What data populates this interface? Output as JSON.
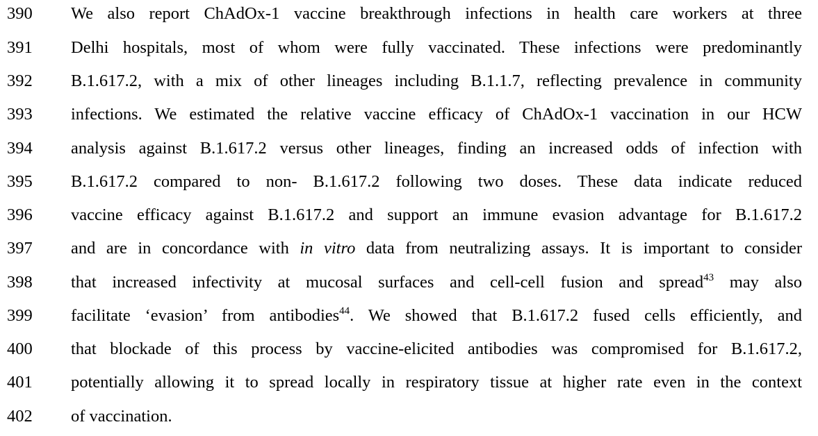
{
  "lines": [
    {
      "number": "390",
      "text": "We also report ChAdOx-1 vaccine breakthrough infections in health care workers at three"
    },
    {
      "number": "391",
      "text": "Delhi hospitals, most of whom were fully vaccinated. These infections were predominantly"
    },
    {
      "number": "392",
      "text": "B.1.617.2, with a mix of other lineages including B.1.1.7, reflecting prevalence in community"
    },
    {
      "number": "393",
      "text": "infections. We estimated the relative vaccine efficacy of ChAdOx-1 vaccination in our HCW"
    },
    {
      "number": "394",
      "text": "analysis against B.1.617.2 versus other lineages, finding an increased odds of infection with"
    },
    {
      "number": "395",
      "text": "B.1.617.2 compared to non- B.1.617.2 following two doses. These data indicate reduced"
    },
    {
      "number": "396",
      "text": "vaccine efficacy against B.1.617.2 and support an immune evasion advantage for B.1.617.2"
    },
    {
      "number": "397",
      "pre": "and are in concordance with ",
      "italic": "in vitro",
      "post": " data from neutralizing assays. It is important to consider"
    },
    {
      "number": "398",
      "pre": "that increased infectivity at mucosal surfaces and cell-cell fusion and spread",
      "sup": "43",
      "post": " may also"
    },
    {
      "number": "399",
      "pre": "facilitate ‘evasion’ from antibodies",
      "sup": "44",
      "post": ". We showed that B.1.617.2 fused cells efficiently, and"
    },
    {
      "number": "400",
      "text": "that blockade of this process by vaccine-elicited antibodies was compromised for B.1.617.2,"
    },
    {
      "number": "401",
      "text": "potentially allowing it to spread locally in respiratory tissue at higher rate even in the context"
    },
    {
      "number": "402",
      "text": "of vaccination."
    }
  ]
}
